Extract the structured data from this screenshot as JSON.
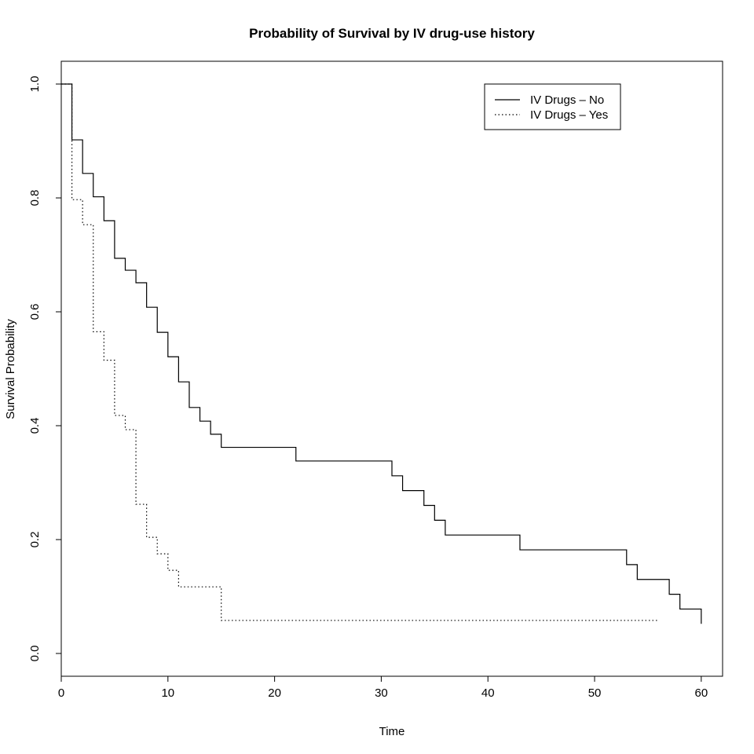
{
  "chart_data": {
    "type": "line",
    "title": "Probability of Survival by IV drug-use history",
    "xlabel": "Time",
    "ylabel": "Survival Probability",
    "xlim": [
      0,
      62
    ],
    "ylim": [
      -0.04,
      1.04
    ],
    "xticks": [
      0,
      10,
      20,
      30,
      40,
      50,
      60
    ],
    "yticks": [
      0.0,
      0.2,
      0.4,
      0.6,
      0.8,
      1.0
    ],
    "xtick_labels": [
      "0",
      "10",
      "20",
      "30",
      "40",
      "50",
      "60"
    ],
    "ytick_labels": [
      "0.0",
      "0.2",
      "0.4",
      "0.6",
      "0.8",
      "1.0"
    ],
    "grid": false,
    "legend_position": "top-right",
    "step": true,
    "series": [
      {
        "name": "IV Drugs – No",
        "line_style": "solid",
        "x": [
          0,
          1,
          2,
          3,
          4,
          5,
          6,
          7,
          8,
          9,
          10,
          11,
          12,
          13,
          14,
          15,
          22,
          30,
          31,
          32,
          34,
          35,
          36,
          43,
          53,
          54,
          57,
          58,
          60
        ],
        "y": [
          1.0,
          0.902,
          0.843,
          0.802,
          0.76,
          0.694,
          0.673,
          0.651,
          0.608,
          0.564,
          0.521,
          0.477,
          0.432,
          0.408,
          0.385,
          0.362,
          0.338,
          0.338,
          0.312,
          0.286,
          0.26,
          0.234,
          0.208,
          0.182,
          0.156,
          0.13,
          0.104,
          0.078,
          0.052
        ]
      },
      {
        "name": "IV Drugs – Yes",
        "line_style": "dotted",
        "x": [
          0,
          1,
          2,
          3,
          4,
          5,
          6,
          7,
          8,
          9,
          10,
          11,
          15,
          56
        ],
        "y": [
          1.0,
          0.797,
          0.753,
          0.565,
          0.515,
          0.418,
          0.393,
          0.262,
          0.204,
          0.175,
          0.146,
          0.117,
          0.058,
          0.058
        ]
      }
    ]
  }
}
